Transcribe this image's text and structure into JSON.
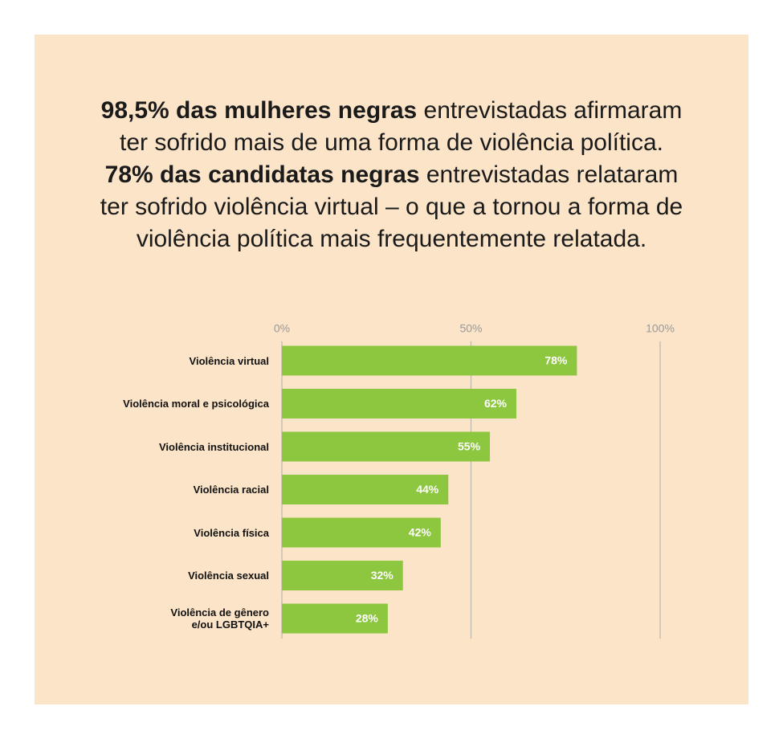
{
  "chart_data": {
    "type": "bar",
    "orientation": "horizontal",
    "title": [
      {
        "text": "98,5% das mulheres negras",
        "bold": true
      },
      {
        "text": "entrevistadas afirmaram ter sofrido mais de uma forma de violência política.",
        "bold": false
      },
      {
        "text": "78% das candidatas negras",
        "bold": true
      },
      {
        "text": "entrevistadas relataram ter sofrido violência virtual – o que a tornou a forma de violência política mais frequentemente relatada.",
        "bold": false
      }
    ],
    "categories": [
      "Violência virtual",
      "Violência moral e psicológica",
      "Violência institucional",
      "Violência racial",
      "Violência física",
      "Violência sexual",
      "Violência de gênero\ne/ou LGBTQIA+"
    ],
    "values": [
      78,
      62,
      55,
      44,
      42,
      32,
      28
    ],
    "value_labels": [
      "78%",
      "62%",
      "55%",
      "44%",
      "42%",
      "32%",
      "28%"
    ],
    "color": "#8dc63f",
    "xlim": [
      0,
      100
    ],
    "xticks": [
      {
        "value": 0,
        "label": "0%"
      },
      {
        "value": 50,
        "label": "50%"
      },
      {
        "value": 100,
        "label": "100%"
      }
    ],
    "grid": true
  }
}
